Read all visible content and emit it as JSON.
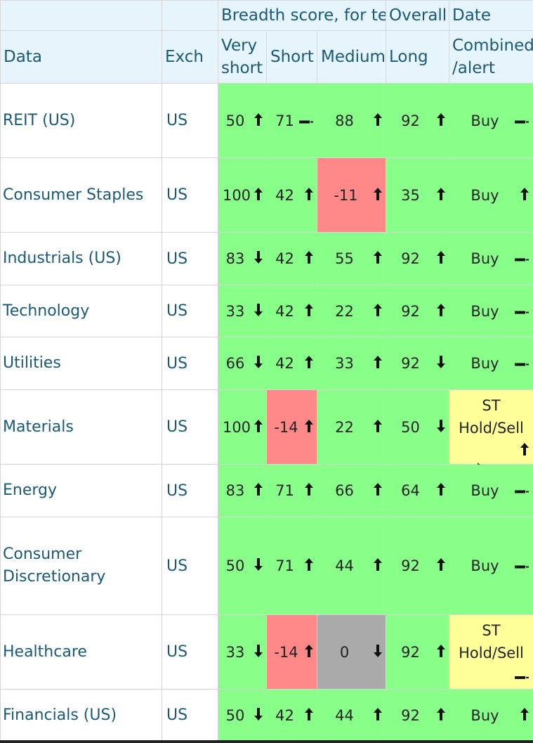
{
  "header": {
    "group_breadth": "Breadth score, for term",
    "group_overall": "Overall",
    "group_date": "Date",
    "col_data": "Data",
    "col_exch": "Exch",
    "col_very_short": "Very short",
    "col_very_short_l1": "Very",
    "col_very_short_l2": "short",
    "col_short": "Short",
    "col_medium": "Medium",
    "col_long": "Long",
    "col_combined_l1": "Combined",
    "col_combined_l2": "/alert"
  },
  "colors": {
    "green": "#88ff88",
    "red": "#ff8888",
    "gray": "#aaaaaa",
    "yellow": "#ffff99",
    "header_bg": "#e6f4fb",
    "text_blue": "#1a5a78"
  },
  "rows": [
    {
      "name": "REIT (US)",
      "exch": "US",
      "vs": "50",
      "vs_dir": "up",
      "s": "71",
      "s_dir": "flat",
      "m": "88",
      "m_dir": "up",
      "l": "92",
      "l_dir": "up",
      "alert": "Buy",
      "alert_dir": "flat",
      "vs_c": "green",
      "s_c": "green",
      "m_c": "green",
      "l_c": "green",
      "a_c": "green"
    },
    {
      "name": "Consumer Staples",
      "exch": "US",
      "vs": "100",
      "vs_dir": "up",
      "s": "42",
      "s_dir": "up",
      "m": "-11",
      "m_dir": "up",
      "l": "35",
      "l_dir": "up",
      "alert": "Buy",
      "alert_dir": "up",
      "vs_c": "green",
      "s_c": "green",
      "m_c": "red",
      "l_c": "green",
      "a_c": "green"
    },
    {
      "name": "Industrials (US)",
      "exch": "US",
      "vs": "83",
      "vs_dir": "down",
      "s": "42",
      "s_dir": "up",
      "m": "55",
      "m_dir": "up",
      "l": "92",
      "l_dir": "up",
      "alert": "Buy",
      "alert_dir": "flat",
      "vs_c": "green",
      "s_c": "green",
      "m_c": "green",
      "l_c": "green",
      "a_c": "green"
    },
    {
      "name": "Technology",
      "exch": "US",
      "vs": "33",
      "vs_dir": "down",
      "s": "42",
      "s_dir": "up",
      "m": "22",
      "m_dir": "up",
      "l": "92",
      "l_dir": "up",
      "alert": "Buy",
      "alert_dir": "flat",
      "vs_c": "green",
      "s_c": "green",
      "m_c": "green",
      "l_c": "green",
      "a_c": "green"
    },
    {
      "name": "Utilities",
      "exch": "US",
      "vs": "66",
      "vs_dir": "down",
      "s": "42",
      "s_dir": "up",
      "m": "33",
      "m_dir": "up",
      "l": "92",
      "l_dir": "down",
      "alert": "Buy",
      "alert_dir": "flat",
      "vs_c": "green",
      "s_c": "green",
      "m_c": "green",
      "l_c": "green",
      "a_c": "green"
    },
    {
      "name": "Materials",
      "exch": "US",
      "vs": "100",
      "vs_dir": "up",
      "s": "-14",
      "s_dir": "up",
      "m": "22",
      "m_dir": "up",
      "l": "50",
      "l_dir": "down",
      "alert": "ST Hold/Sell",
      "alert_l1": "ST",
      "alert_l2": "Hold/Sell",
      "alert_dir": "up",
      "vs_c": "green",
      "s_c": "red",
      "m_c": "green",
      "l_c": "green",
      "a_c": "yellow"
    },
    {
      "name": "Energy",
      "exch": "US",
      "vs": "83",
      "vs_dir": "up",
      "s": "71",
      "s_dir": "up",
      "m": "66",
      "m_dir": "up",
      "l": "64",
      "l_dir": "up",
      "alert": "Buy",
      "alert_dir": "flat",
      "vs_c": "green",
      "s_c": "green",
      "m_c": "green",
      "l_c": "green",
      "a_c": "green"
    },
    {
      "name": "Consumer Discretionary",
      "name_l1": "Consumer",
      "name_l2": "Discretionary",
      "exch": "US",
      "vs": "50",
      "vs_dir": "down",
      "s": "71",
      "s_dir": "up",
      "m": "44",
      "m_dir": "up",
      "l": "92",
      "l_dir": "up",
      "alert": "Buy",
      "alert_dir": "flat",
      "vs_c": "green",
      "s_c": "green",
      "m_c": "green",
      "l_c": "green",
      "a_c": "green"
    },
    {
      "name": "Healthcare",
      "exch": "US",
      "vs": "33",
      "vs_dir": "down",
      "s": "-14",
      "s_dir": "up",
      "m": "0",
      "m_dir": "down",
      "l": "92",
      "l_dir": "up",
      "alert": "ST Hold/Sell",
      "alert_l1": "ST",
      "alert_l2": "Hold/Sell",
      "alert_dir": "flat",
      "vs_c": "green",
      "s_c": "red",
      "m_c": "gray",
      "l_c": "green",
      "a_c": "yellow"
    },
    {
      "name": "Financials (US)",
      "exch": "US",
      "vs": "50",
      "vs_dir": "down",
      "s": "42",
      "s_dir": "up",
      "m": "44",
      "m_dir": "up",
      "l": "92",
      "l_dir": "up",
      "alert": "Buy",
      "alert_dir": "up",
      "vs_c": "green",
      "s_c": "green",
      "m_c": "green",
      "l_c": "green",
      "a_c": "green"
    }
  ]
}
